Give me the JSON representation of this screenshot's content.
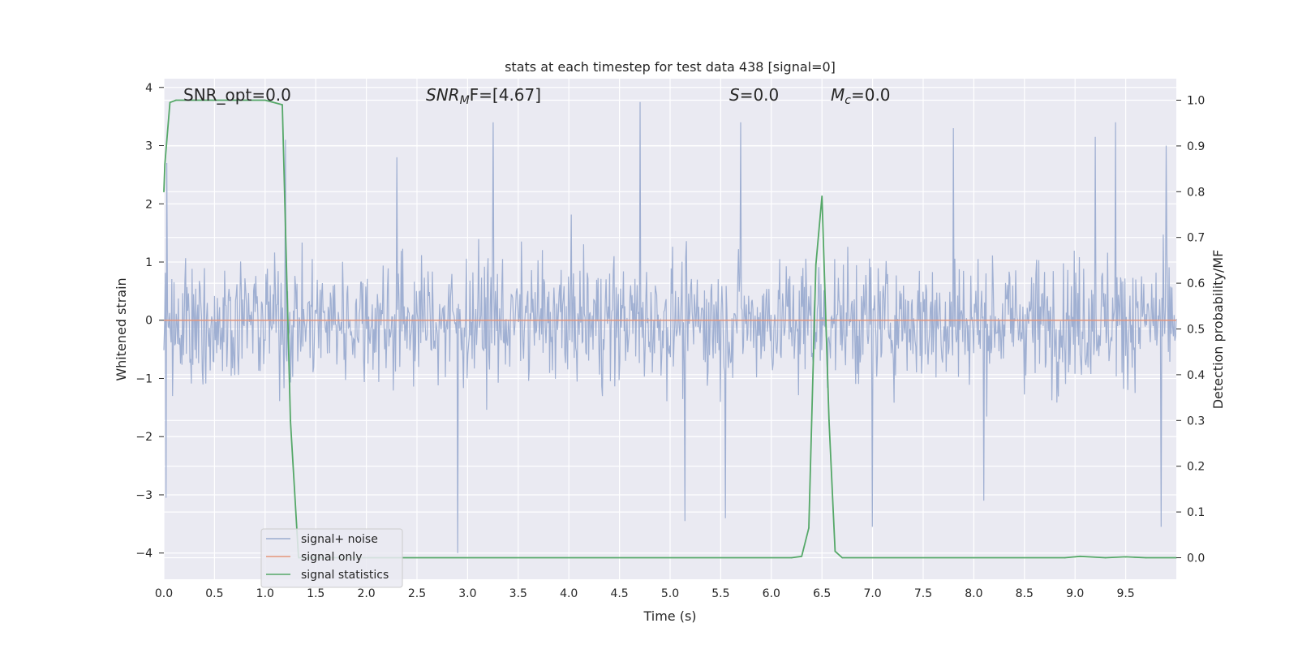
{
  "chart_data": {
    "type": "line",
    "title": "stats at each timestep for test data 438 [signal=0]",
    "xlabel": "Time (s)",
    "ylabel": "Whitened strain",
    "y2label": "Detection probability/MF",
    "xlim": [
      0.0,
      10.0
    ],
    "ylim": [
      -4.45,
      4.15
    ],
    "y2lim": [
      -0.047,
      1.047
    ],
    "xticks": [
      "0.0",
      "0.5",
      "1.0",
      "1.5",
      "2.0",
      "2.5",
      "3.0",
      "3.5",
      "4.0",
      "4.5",
      "5.0",
      "5.5",
      "6.0",
      "6.5",
      "7.0",
      "7.5",
      "8.0",
      "8.5",
      "9.0",
      "9.5"
    ],
    "yticks": [
      "4",
      "3",
      "2",
      "1",
      "0",
      "−1",
      "−2",
      "−3",
      "−4"
    ],
    "y2ticks": [
      "1.0",
      "0.9",
      "0.8",
      "0.7",
      "0.6",
      "0.5",
      "0.4",
      "0.3",
      "0.2",
      "0.1",
      "0.0"
    ],
    "grid": true,
    "legend_position": "lower-left",
    "annotations": {
      "snr_opt": "SNR_opt=0.0",
      "snr_mf_base": "SNR",
      "snr_mf_sub": "M",
      "snr_mf_rest": "F=[4.67]",
      "s_label": "S",
      "s_rest": "=0.0",
      "mc_base": "M",
      "mc_sub": "c",
      "mc_rest": "=0.0"
    },
    "series": [
      {
        "name": "signal+ noise",
        "color": "#9bacd0",
        "axis": "left",
        "description_values": "whitened noise, approximately Gaussian, amplitude within about ±2 with spikes to about ±4",
        "spikes": [
          {
            "x": 0.02,
            "y": -3.05
          },
          {
            "x": 0.03,
            "y": 2.7
          },
          {
            "x": 1.1,
            "y": 0.55
          },
          {
            "x": 1.2,
            "y": 3.1
          },
          {
            "x": 2.3,
            "y": 2.8
          },
          {
            "x": 2.9,
            "y": -4.0
          },
          {
            "x": 3.25,
            "y": 3.4
          },
          {
            "x": 4.7,
            "y": 3.75
          },
          {
            "x": 5.15,
            "y": -3.45
          },
          {
            "x": 5.55,
            "y": -3.4
          },
          {
            "x": 5.7,
            "y": 3.4
          },
          {
            "x": 7.0,
            "y": -3.55
          },
          {
            "x": 7.8,
            "y": 3.3
          },
          {
            "x": 9.2,
            "y": 3.15
          },
          {
            "x": 9.4,
            "y": 3.4
          },
          {
            "x": 9.85,
            "y": -3.55
          },
          {
            "x": 9.9,
            "y": 3.0
          },
          {
            "x": 8.1,
            "y": -3.1
          }
        ]
      },
      {
        "name": "signal only",
        "color": "#e5967b",
        "axis": "left",
        "x": [
          0.0,
          10.0
        ],
        "y": [
          0.0,
          0.0
        ]
      },
      {
        "name": "signal statistics",
        "color": "#55a868",
        "axis": "right",
        "x": [
          0.0,
          0.01,
          0.06,
          0.12,
          0.5,
          1.0,
          1.17,
          1.25,
          1.33,
          1.5,
          3.0,
          6.2,
          6.3,
          6.37,
          6.44,
          6.5,
          6.57,
          6.63,
          6.7,
          8.0,
          8.9,
          9.05,
          9.3,
          9.5,
          9.7,
          10.0
        ],
        "y": [
          0.8,
          0.86,
          0.995,
          1.0,
          1.0,
          1.0,
          0.99,
          0.3,
          0.0,
          0.0,
          0.0,
          0.0,
          0.003,
          0.065,
          0.64,
          0.79,
          0.3,
          0.014,
          0.0,
          0.0,
          0.0,
          0.003,
          0.0,
          0.002,
          0.0,
          0.0
        ]
      }
    ]
  }
}
